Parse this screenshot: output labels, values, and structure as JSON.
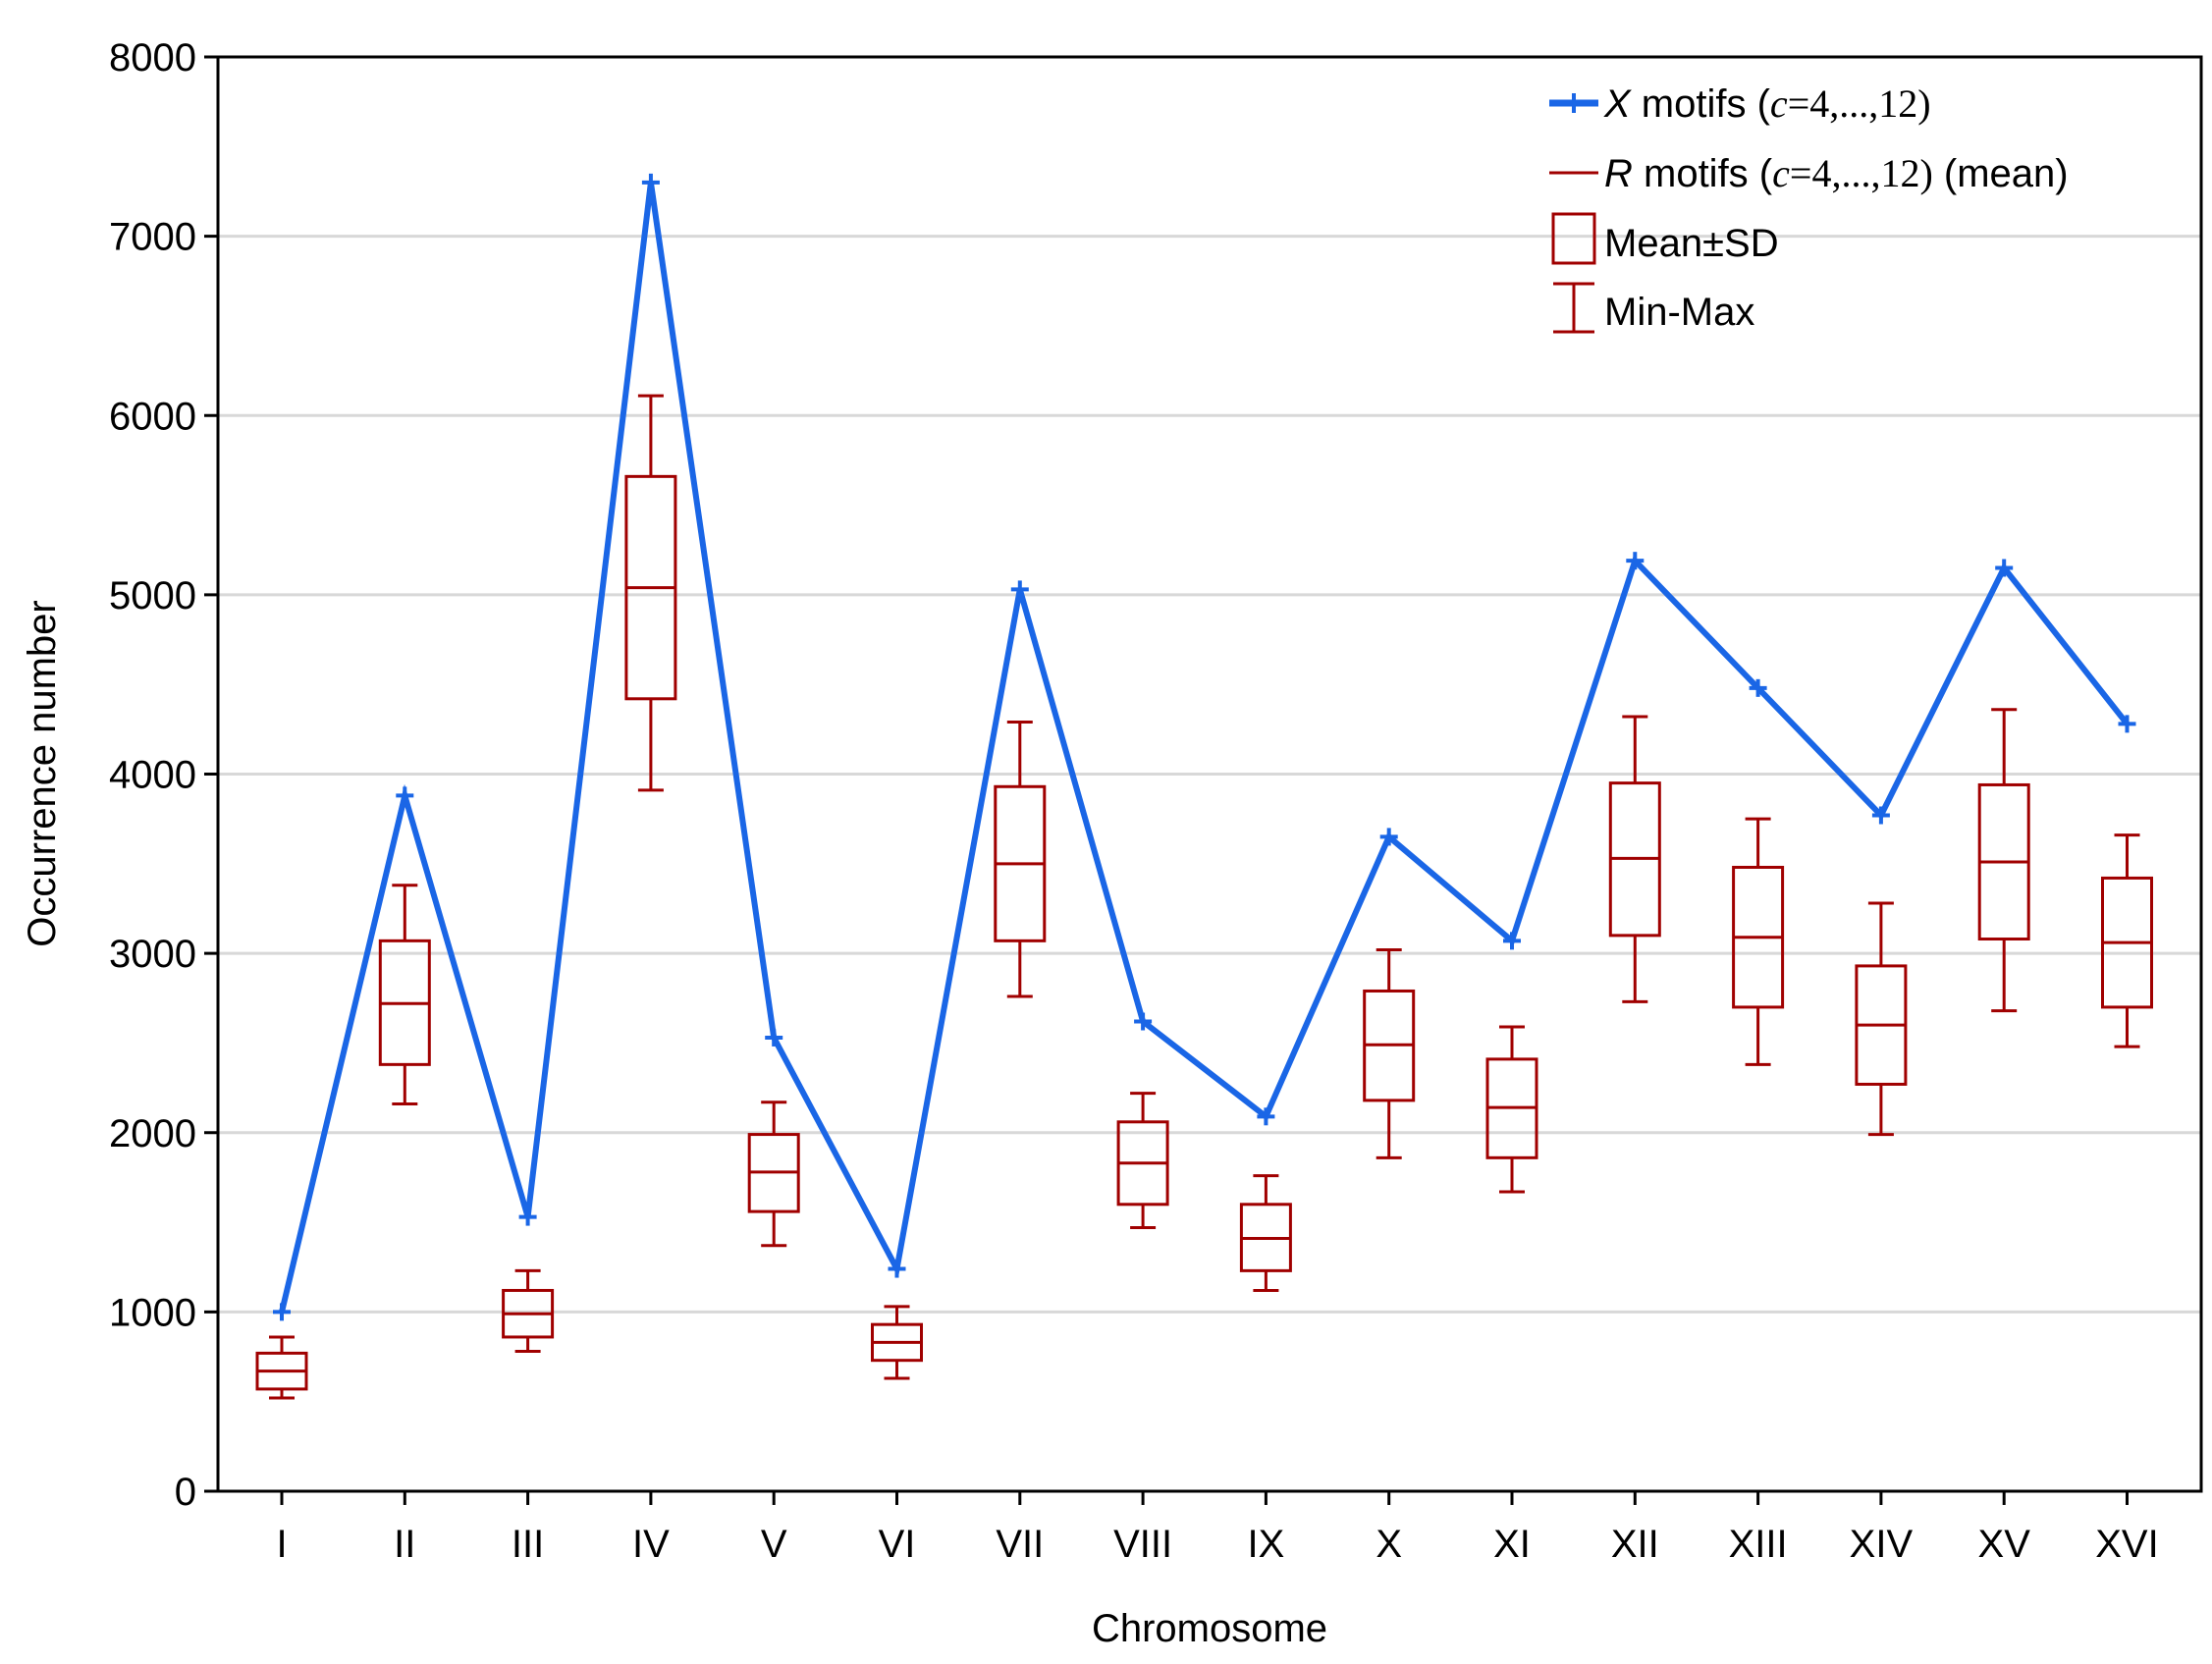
{
  "chart_data": {
    "type": "line+box",
    "title": "",
    "xlabel": "Chromosome",
    "ylabel": "Occurrence number",
    "ylim": [
      0,
      8000
    ],
    "yticks": [
      0,
      1000,
      2000,
      3000,
      4000,
      5000,
      6000,
      7000,
      8000
    ],
    "ytick_labels": [
      "0",
      "1000",
      "2000",
      "3000",
      "4000",
      "5000",
      "6000",
      "7000",
      "8000"
    ],
    "grid": "horizontal",
    "legend_position": "top-right",
    "categories": [
      "I",
      "II",
      "III",
      "IV",
      "V",
      "VI",
      "VII",
      "VIII",
      "IX",
      "X",
      "XI",
      "XII",
      "XIII",
      "XIV",
      "XV",
      "XVI"
    ],
    "x_motifs": {
      "name": "X motifs (c=4,...,12)",
      "color": "#1a66e6",
      "values": [
        1000,
        3880,
        1530,
        7300,
        2530,
        1240,
        5030,
        2620,
        2090,
        3650,
        3070,
        5190,
        4480,
        3770,
        5150,
        4280
      ]
    },
    "r_motifs": {
      "name": "R motifs (c=4,...,12) (mean)",
      "color": "#a00000",
      "mean": [
        670,
        2720,
        990,
        5040,
        1780,
        830,
        3500,
        1830,
        1410,
        2490,
        2140,
        3530,
        3090,
        2600,
        3510,
        3060
      ],
      "sd_low": [
        570,
        2380,
        860,
        4420,
        1560,
        730,
        3070,
        1600,
        1230,
        2180,
        1860,
        3100,
        2700,
        2270,
        3080,
        2700
      ],
      "sd_high": [
        770,
        3070,
        1120,
        5660,
        1990,
        930,
        3930,
        2060,
        1600,
        2790,
        2410,
        3950,
        3480,
        2930,
        3940,
        3420
      ],
      "min": [
        520,
        2160,
        780,
        3910,
        1370,
        630,
        2760,
        1470,
        1120,
        1860,
        1670,
        2730,
        2380,
        1990,
        2680,
        2480
      ],
      "max": [
        860,
        3380,
        1230,
        6110,
        2170,
        1030,
        4290,
        2220,
        1760,
        3020,
        2590,
        4320,
        3750,
        3280,
        4360,
        3660
      ]
    },
    "legend": {
      "x_motifs": {
        "var": "X",
        "text": " motifs (",
        "c": "c",
        "range": "=4,...,12)"
      },
      "r_motifs": {
        "var": "R",
        "text": " motifs (",
        "c": "c",
        "range": "=4,...,12)",
        "suffix": " (mean)"
      },
      "mean_sd": "Mean±SD",
      "min_max": "Min-Max"
    }
  }
}
